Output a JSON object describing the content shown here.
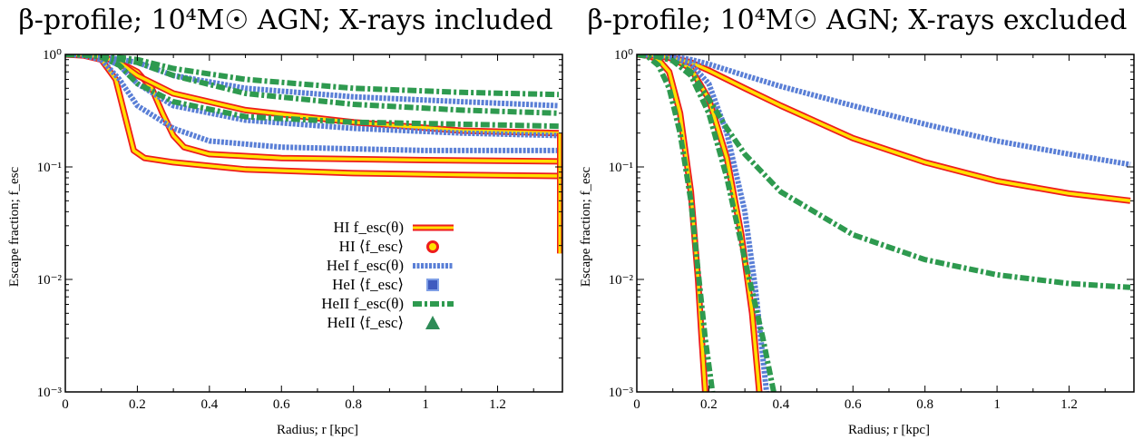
{
  "chart_data": [
    {
      "type": "line",
      "title": "β-profile; 10⁴M☉ AGN; X-rays included",
      "xlabel": "Radius; r [kpc]",
      "ylabel": "Escape fraction; f_esc",
      "xlim": [
        0,
        1.38
      ],
      "ylim": [
        0.001,
        1
      ],
      "yscale": "log",
      "xticks": [
        "0",
        "0.2",
        "0.4",
        "0.6",
        "0.8",
        "1",
        "1.2"
      ],
      "yticks": [
        "10⁻³",
        "10⁻²",
        "10⁻¹",
        "10⁰"
      ],
      "legend_position": "center-right",
      "legend": [
        {
          "label": "HI f_esc(θ)",
          "style": "HI-line"
        },
        {
          "label": "HI ⟨f_esc⟩",
          "style": "HI-marker"
        },
        {
          "label": "HeI f_esc(θ)",
          "style": "HeI-line"
        },
        {
          "label": "HeI ⟨f_esc⟩",
          "style": "HeI-marker"
        },
        {
          "label": "HeII f_esc(θ)",
          "style": "HeII-line"
        },
        {
          "label": "HeII ⟨f_esc⟩",
          "style": "HeII-marker"
        }
      ],
      "series": [
        {
          "species": "HI",
          "x": [
            0,
            0.05,
            0.1,
            0.14,
            0.17,
            0.19,
            0.22,
            0.3,
            0.5,
            0.8,
            1.1,
            1.37
          ],
          "y": [
            1,
            0.98,
            0.9,
            0.6,
            0.25,
            0.14,
            0.12,
            0.11,
            0.095,
            0.088,
            0.085,
            0.083
          ]
        },
        {
          "species": "HI",
          "x": [
            0,
            0.05,
            0.1,
            0.15,
            0.2,
            0.24,
            0.27,
            0.3,
            0.33,
            0.4,
            0.6,
            1.0,
            1.37
          ],
          "y": [
            1,
            0.99,
            0.95,
            0.85,
            0.7,
            0.5,
            0.3,
            0.19,
            0.15,
            0.13,
            0.12,
            0.115,
            0.112
          ]
        },
        {
          "species": "HI",
          "x": [
            0,
            0.05,
            0.1,
            0.15,
            0.2,
            0.3,
            0.5,
            0.8,
            1.1,
            1.37
          ],
          "y": [
            1,
            0.99,
            0.95,
            0.85,
            0.65,
            0.45,
            0.32,
            0.25,
            0.21,
            0.2
          ]
        },
        {
          "species": "HeI",
          "x": [
            0,
            0.05,
            0.1,
            0.15,
            0.2,
            0.3,
            0.4,
            0.6,
            1.0,
            1.37
          ],
          "y": [
            1,
            0.98,
            0.9,
            0.6,
            0.35,
            0.22,
            0.17,
            0.15,
            0.14,
            0.14
          ]
        },
        {
          "species": "HeI",
          "x": [
            0,
            0.05,
            0.1,
            0.15,
            0.2,
            0.3,
            0.5,
            0.8,
            1.1,
            1.37
          ],
          "y": [
            1,
            0.99,
            0.95,
            0.8,
            0.55,
            0.35,
            0.26,
            0.22,
            0.2,
            0.19
          ]
        },
        {
          "species": "HeI",
          "x": [
            0,
            0.05,
            0.1,
            0.2,
            0.3,
            0.5,
            0.8,
            1.1,
            1.37
          ],
          "y": [
            1,
            0.99,
            0.96,
            0.85,
            0.65,
            0.5,
            0.42,
            0.38,
            0.35
          ]
        },
        {
          "species": "HeII",
          "x": [
            0,
            0.05,
            0.1,
            0.15,
            0.2,
            0.3,
            0.5,
            0.8,
            1.1,
            1.37
          ],
          "y": [
            1,
            0.99,
            0.95,
            0.8,
            0.55,
            0.38,
            0.28,
            0.25,
            0.24,
            0.23
          ]
        },
        {
          "species": "HeII",
          "x": [
            0,
            0.05,
            0.1,
            0.2,
            0.3,
            0.5,
            0.8,
            1.1,
            1.37
          ],
          "y": [
            1,
            0.99,
            0.97,
            0.85,
            0.65,
            0.45,
            0.36,
            0.32,
            0.3
          ]
        },
        {
          "species": "HeII",
          "x": [
            0,
            0.05,
            0.1,
            0.2,
            0.3,
            0.5,
            0.8,
            1.1,
            1.37
          ],
          "y": [
            1,
            0.99,
            0.98,
            0.9,
            0.75,
            0.6,
            0.5,
            0.46,
            0.44
          ]
        }
      ]
    },
    {
      "type": "line",
      "title": "β-profile; 10⁴M☉ AGN; X-rays excluded",
      "xlabel": "Radius; r [kpc]",
      "ylabel": "Escape fraction; f_esc",
      "xlim": [
        0,
        1.38
      ],
      "ylim": [
        0.001,
        1
      ],
      "yscale": "log",
      "xticks": [
        "0",
        "0.2",
        "0.4",
        "0.6",
        "0.8",
        "1",
        "1.2"
      ],
      "yticks": [
        "10⁻³",
        "10⁻²",
        "10⁻¹",
        "10⁰"
      ],
      "series": [
        {
          "species": "HI",
          "x": [
            0,
            0.03,
            0.06,
            0.09,
            0.12,
            0.15,
            0.17,
            0.18,
            0.19
          ],
          "y": [
            1,
            0.98,
            0.9,
            0.7,
            0.3,
            0.06,
            0.01,
            0.003,
            0.001
          ]
        },
        {
          "species": "HI",
          "x": [
            0,
            0.05,
            0.1,
            0.15,
            0.2,
            0.25,
            0.29,
            0.32,
            0.34
          ],
          "y": [
            1,
            0.98,
            0.92,
            0.75,
            0.4,
            0.12,
            0.025,
            0.005,
            0.001
          ]
        },
        {
          "species": "HI",
          "x": [
            0,
            0.05,
            0.1,
            0.15,
            0.2,
            0.3,
            0.4,
            0.6,
            0.8,
            1.0,
            1.2,
            1.37
          ],
          "y": [
            1,
            0.98,
            0.93,
            0.85,
            0.72,
            0.5,
            0.35,
            0.18,
            0.11,
            0.075,
            0.058,
            0.05
          ]
        },
        {
          "species": "HeI",
          "x": [
            0,
            0.05,
            0.1,
            0.15,
            0.2,
            0.25,
            0.3,
            0.33,
            0.36
          ],
          "y": [
            1,
            0.98,
            0.94,
            0.82,
            0.55,
            0.2,
            0.04,
            0.008,
            0.001
          ]
        },
        {
          "species": "HeI",
          "x": [
            0,
            0.05,
            0.1,
            0.15,
            0.2,
            0.3,
            0.4,
            0.6,
            0.8,
            1.0,
            1.2,
            1.37
          ],
          "y": [
            1,
            0.99,
            0.96,
            0.9,
            0.82,
            0.65,
            0.52,
            0.35,
            0.24,
            0.17,
            0.13,
            0.105
          ]
        },
        {
          "species": "HeII",
          "x": [
            0,
            0.03,
            0.06,
            0.09,
            0.12,
            0.15,
            0.17,
            0.19,
            0.21
          ],
          "y": [
            1,
            0.96,
            0.8,
            0.5,
            0.2,
            0.05,
            0.012,
            0.003,
            0.001
          ]
        },
        {
          "species": "HeII",
          "x": [
            0,
            0.05,
            0.1,
            0.15,
            0.2,
            0.25,
            0.3,
            0.35,
            0.38
          ],
          "y": [
            1,
            0.97,
            0.88,
            0.65,
            0.3,
            0.08,
            0.015,
            0.003,
            0.001
          ]
        },
        {
          "species": "HeII",
          "x": [
            0,
            0.05,
            0.1,
            0.15,
            0.2,
            0.25,
            0.3,
            0.4,
            0.6,
            0.8,
            1.0,
            1.2,
            1.37
          ],
          "y": [
            1,
            0.97,
            0.88,
            0.7,
            0.4,
            0.22,
            0.13,
            0.06,
            0.025,
            0.015,
            0.011,
            0.0092,
            0.0085
          ]
        }
      ]
    }
  ],
  "styles": {
    "HI": {
      "outer": "#ee1c1c",
      "inner": "#ffe000"
    },
    "HeI": {
      "outer": "#5a7fd6",
      "inner": "#ffffff",
      "marker_fill": "#3f5bbf"
    },
    "HeII": {
      "outer": "#2e9a4f",
      "inner": "#ffffff",
      "marker_fill": "#2e8b57"
    }
  }
}
